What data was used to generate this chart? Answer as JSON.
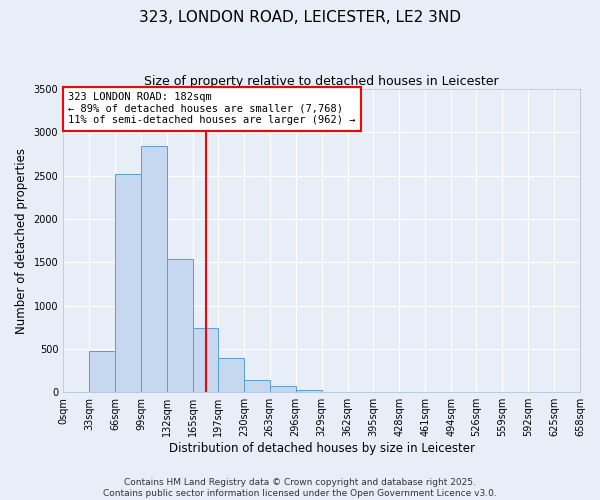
{
  "title": "323, LONDON ROAD, LEICESTER, LE2 3ND",
  "subtitle": "Size of property relative to detached houses in Leicester",
  "xlabel": "Distribution of detached houses by size in Leicester",
  "ylabel": "Number of detached properties",
  "bar_values": [
    0,
    480,
    2520,
    2840,
    1540,
    740,
    390,
    145,
    70,
    30,
    5,
    0,
    0,
    0,
    0,
    0,
    0,
    0,
    0,
    0
  ],
  "bin_edges": [
    0,
    33,
    66,
    99,
    132,
    165,
    197,
    230,
    263,
    296,
    329,
    362,
    395,
    428,
    461,
    494,
    526,
    559,
    592,
    625,
    658
  ],
  "tick_labels": [
    "0sqm",
    "33sqm",
    "66sqm",
    "99sqm",
    "132sqm",
    "165sqm",
    "197sqm",
    "230sqm",
    "263sqm",
    "296sqm",
    "329sqm",
    "362sqm",
    "395sqm",
    "428sqm",
    "461sqm",
    "494sqm",
    "526sqm",
    "559sqm",
    "592sqm",
    "625sqm",
    "658sqm"
  ],
  "bar_color": "#c5d8f0",
  "bar_edgecolor": "#5a9fd4",
  "vline_x": 182,
  "vline_color": "red",
  "ylim": [
    0,
    3500
  ],
  "yticks": [
    0,
    500,
    1000,
    1500,
    2000,
    2500,
    3000,
    3500
  ],
  "annotation_title": "323 LONDON ROAD: 182sqm",
  "annotation_line1": "← 89% of detached houses are smaller (7,768)",
  "annotation_line2": "11% of semi-detached houses are larger (962) →",
  "annotation_box_facecolor": "#ffffff",
  "annotation_box_edgecolor": "red",
  "footer1": "Contains HM Land Registry data © Crown copyright and database right 2025.",
  "footer2": "Contains public sector information licensed under the Open Government Licence v3.0.",
  "background_color": "#e8eef8",
  "grid_color": "#ffffff",
  "title_fontsize": 11,
  "subtitle_fontsize": 9,
  "axis_label_fontsize": 8.5,
  "tick_fontsize": 7,
  "annotation_fontsize": 7.5,
  "footer_fontsize": 6.5
}
